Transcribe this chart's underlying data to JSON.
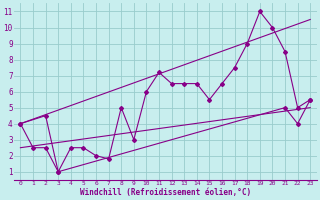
{
  "xlabel": "Windchill (Refroidissement éolien,°C)",
  "bg_color": "#c8eeee",
  "line_color": "#880088",
  "grid_color": "#99cccc",
  "xlim": [
    -0.5,
    23.5
  ],
  "ylim": [
    0.5,
    11.5
  ],
  "xticks": [
    0,
    1,
    2,
    3,
    4,
    5,
    6,
    7,
    8,
    9,
    10,
    11,
    12,
    13,
    14,
    15,
    16,
    17,
    18,
    19,
    20,
    21,
    22,
    23
  ],
  "yticks": [
    1,
    2,
    3,
    4,
    5,
    6,
    7,
    8,
    9,
    10,
    11
  ],
  "main_line_x": [
    0,
    1,
    2,
    3,
    4,
    5,
    6,
    7,
    8,
    9,
    10,
    11,
    12,
    13,
    14,
    15,
    16,
    17,
    18,
    19,
    20,
    21,
    22,
    23
  ],
  "main_line_y": [
    4,
    2.5,
    2.5,
    1,
    2.5,
    2.5,
    2.0,
    1.8,
    5.0,
    3.0,
    6.0,
    7.2,
    6.5,
    6.5,
    6.5,
    5.5,
    6.5,
    7.5,
    9.0,
    11.0,
    10.0,
    8.5,
    5.0,
    5.5
  ],
  "upper_line_x": [
    0,
    23
  ],
  "upper_line_y": [
    4.0,
    10.5
  ],
  "lower_line_x": [
    0,
    23
  ],
  "lower_line_y": [
    2.5,
    5.0
  ],
  "short_line_x": [
    0,
    2,
    3,
    21,
    22,
    23
  ],
  "short_line_y": [
    4.0,
    4.5,
    1.0,
    5.0,
    4.0,
    5.5
  ]
}
